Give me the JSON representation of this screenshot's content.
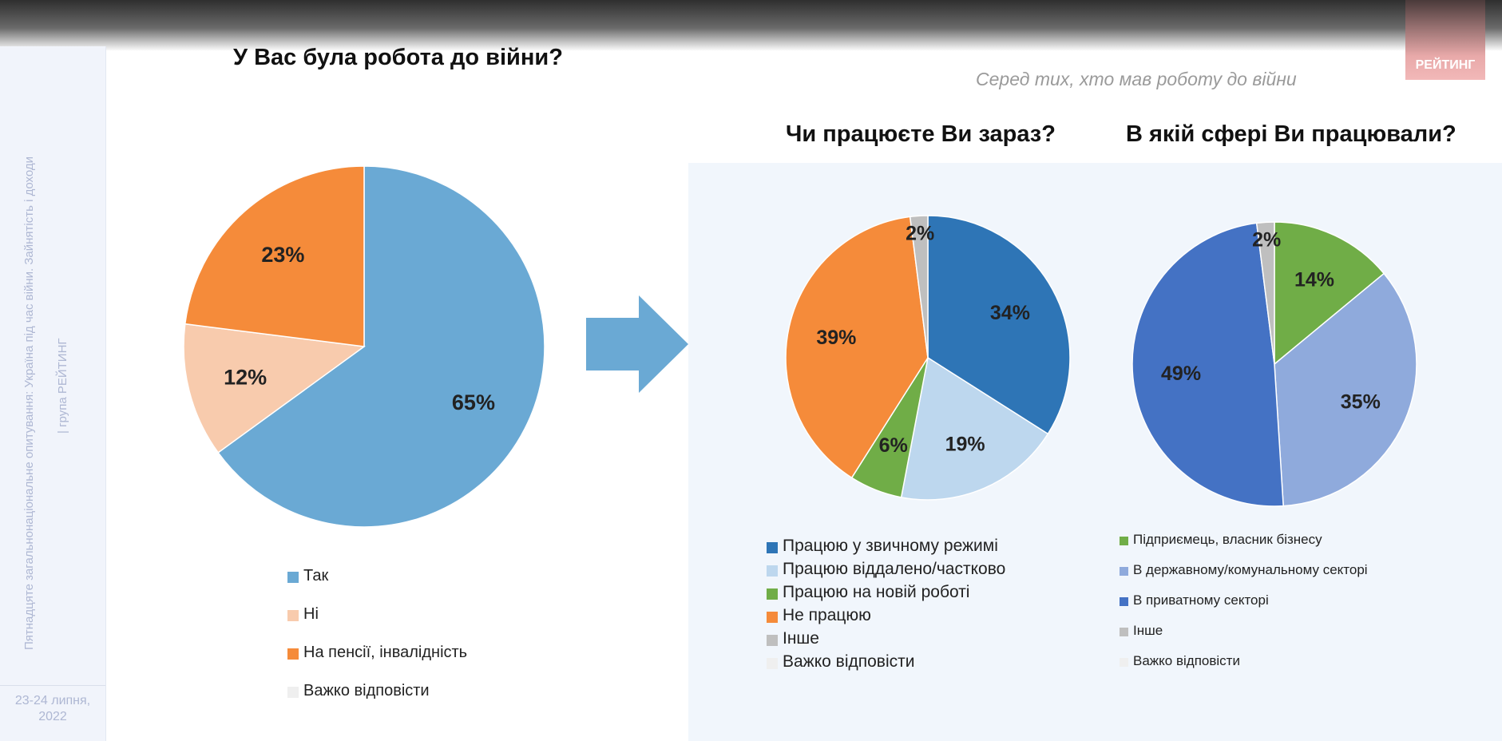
{
  "sidebar": {
    "survey_title": "Пятнадцяте загальнонаціональне опитування: Україна під час війни. Зайнятість і доходи",
    "org": "| група РЕЙТИНГ",
    "date": "23-24 липня, 2022"
  },
  "logo": "РЕЙТИНГ",
  "subtitle": "Серед тих, хто мав роботу до війни",
  "chart_data": [
    {
      "type": "pie",
      "title": "У Вас була робота до війни?",
      "categories": [
        "Так",
        "Ні",
        "На пенсії, інвалідність",
        "Важко відповісти"
      ],
      "values": [
        65,
        12,
        23,
        0
      ],
      "labels": [
        "65%",
        "12%",
        "23%",
        ""
      ],
      "colors": [
        "#6aa9d4",
        "#f8cbad",
        "#f58b3a",
        "#efefef"
      ],
      "legend": "bottom"
    },
    {
      "type": "pie",
      "title": "Чи працюєте Ви зараз?",
      "categories": [
        "Працюю у звичному режимі",
        "Працюю віддалено/частково",
        "Працюю на новій роботі",
        "Не працюю",
        "Інше",
        "Важко відповісти"
      ],
      "values": [
        34,
        19,
        6,
        39,
        2,
        0
      ],
      "labels": [
        "34%",
        "19%",
        "6%",
        "39%",
        "2%",
        ""
      ],
      "colors": [
        "#2e75b6",
        "#bdd7ee",
        "#70ad47",
        "#f58b3a",
        "#bfbfbf",
        "#efefef"
      ],
      "legend": "bottom"
    },
    {
      "type": "pie",
      "title": "В якій сфері Ви працювали?",
      "categories": [
        "Підприємець, власник бізнесу",
        "В державному/комунальному секторі",
        "В приватному секторі",
        "Інше",
        "Важко відповісти"
      ],
      "values": [
        14,
        35,
        49,
        2,
        0
      ],
      "labels": [
        "14%",
        "35%",
        "49%",
        "2%",
        ""
      ],
      "colors": [
        "#70ad47",
        "#8faadc",
        "#4472c4",
        "#bfbfbf",
        "#efefef"
      ],
      "legend": "bottom"
    }
  ]
}
